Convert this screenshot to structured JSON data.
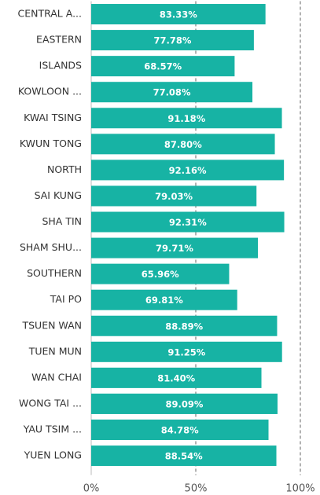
{
  "chart_data": {
    "type": "bar",
    "orientation": "horizontal",
    "categories": [
      "CENTRAL A...",
      "EASTERN",
      "ISLANDS",
      "KOWLOON ...",
      "KWAI TSING",
      "KWUN TONG",
      "NORTH",
      "SAI KUNG",
      "SHA TIN",
      "SHAM SHU...",
      "SOUTHERN",
      "TAI PO",
      "TSUEN WAN",
      "TUEN MUN",
      "WAN CHAI",
      "WONG TAI ...",
      "YAU TSIM ...",
      "YUEN LONG"
    ],
    "values": [
      83.33,
      77.78,
      68.57,
      77.08,
      91.18,
      87.8,
      92.16,
      79.03,
      92.31,
      79.71,
      65.96,
      69.81,
      88.89,
      91.25,
      81.4,
      89.09,
      84.78,
      88.54
    ],
    "value_labels": [
      "83.33%",
      "77.78%",
      "68.57%",
      "77.08%",
      "91.18%",
      "87.80%",
      "92.16%",
      "79.03%",
      "92.31%",
      "79.71%",
      "65.96%",
      "69.81%",
      "88.89%",
      "91.25%",
      "81.40%",
      "89.09%",
      "84.78%",
      "88.54%"
    ],
    "color": "#17b3a4",
    "xlim": [
      0,
      100
    ],
    "xticks": [
      {
        "value": 0,
        "label": "0%"
      },
      {
        "value": 50,
        "label": "50%"
      },
      {
        "value": 100,
        "label": "100%"
      }
    ],
    "grid": true
  }
}
